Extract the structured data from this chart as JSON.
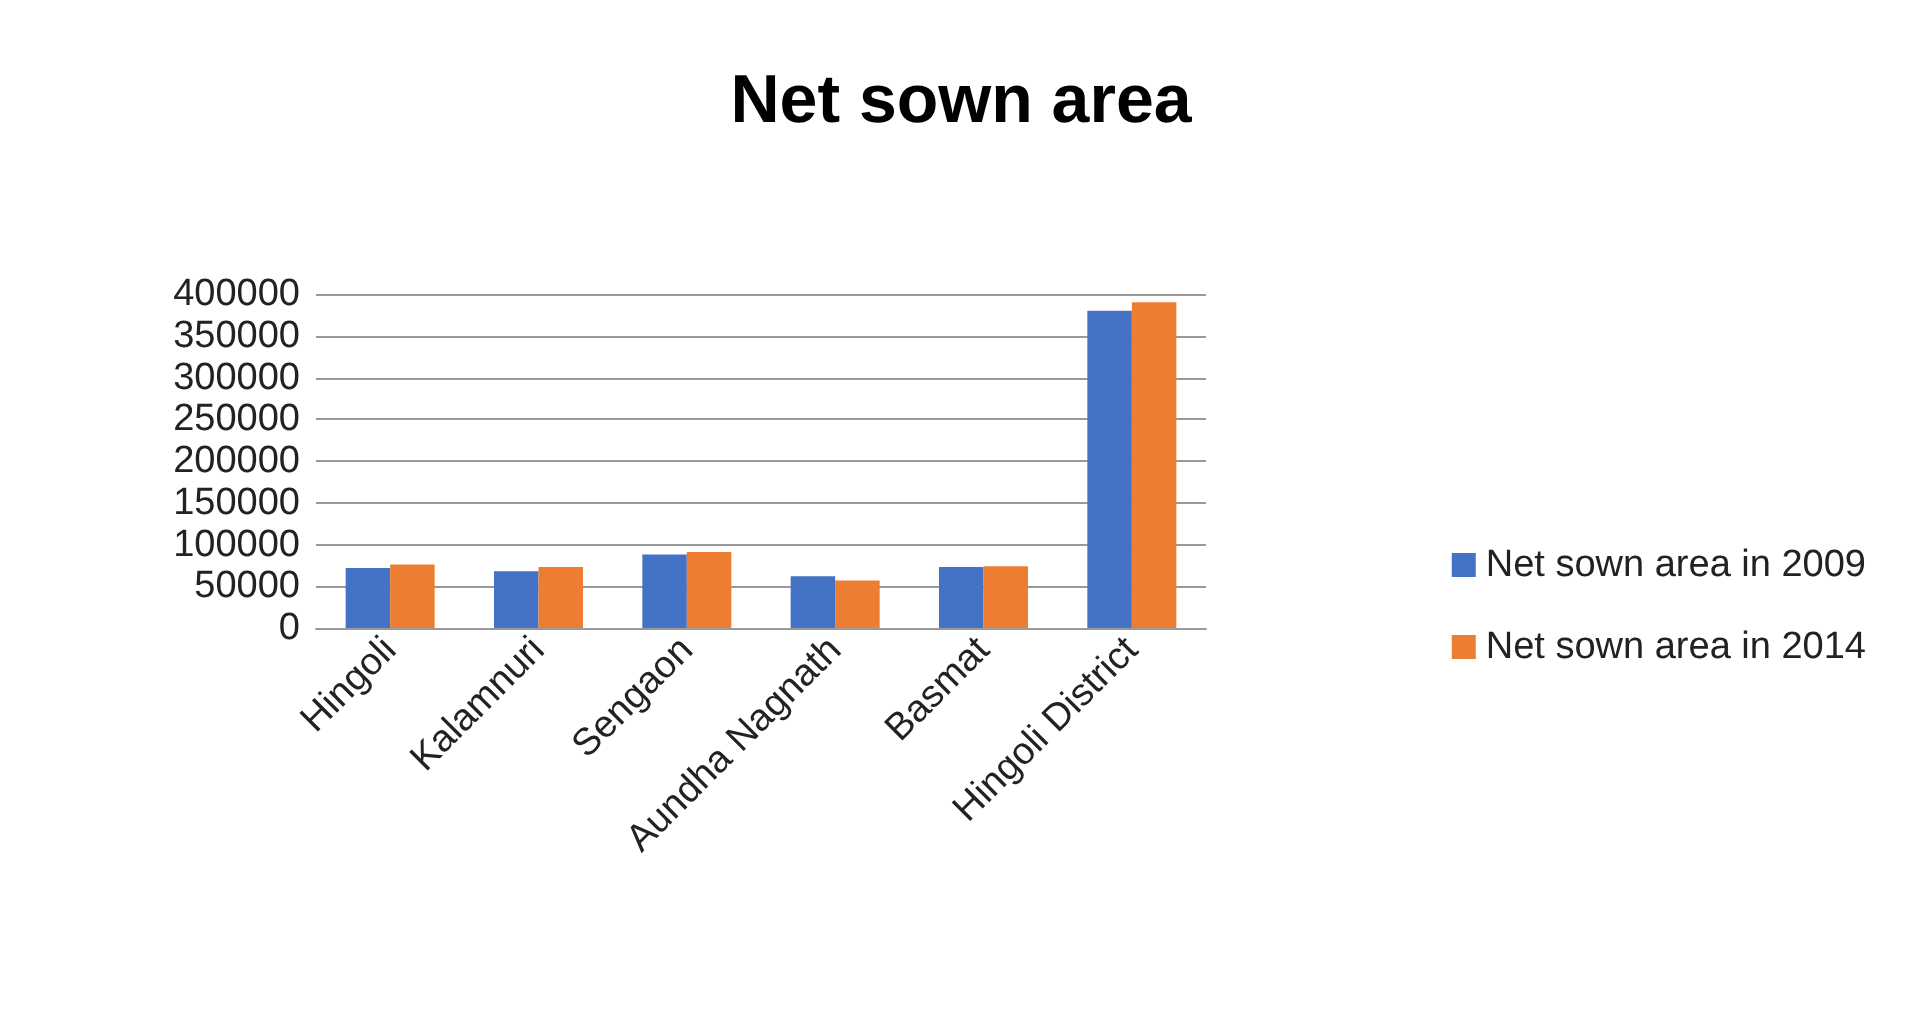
{
  "chart_data": {
    "type": "bar",
    "title": "Net sown area",
    "categories": [
      "Hingoli",
      "Kalamnuri",
      "Sengaon",
      "Aundha Nagnath",
      "Basmat",
      "Hingoli District"
    ],
    "series": [
      {
        "name": "Net sown area in 2009",
        "color": "#4472c4",
        "values": [
          72000,
          68000,
          88000,
          62000,
          73000,
          380000
        ]
      },
      {
        "name": "Net sown area in 2014",
        "color": "#ed7d31",
        "values": [
          76000,
          73000,
          91000,
          57000,
          74000,
          390000
        ]
      }
    ],
    "ylim": [
      0,
      400000
    ],
    "yticks": [
      0,
      50000,
      100000,
      150000,
      200000,
      250000,
      300000,
      350000,
      400000
    ],
    "grid": "y",
    "legend": "right"
  }
}
